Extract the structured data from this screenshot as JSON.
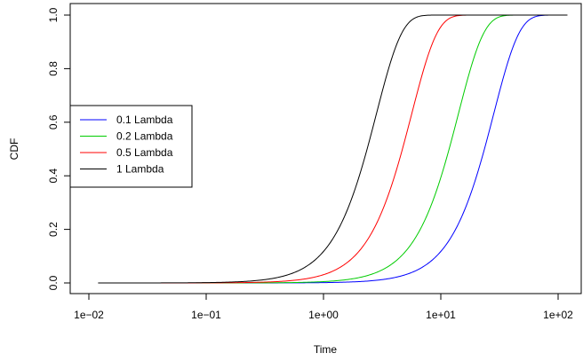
{
  "chart_data": {
    "type": "line",
    "xlabel": "Time",
    "ylabel": "CDF",
    "xscale": "log",
    "xlim": [
      0.01,
      100
    ],
    "ylim": [
      0,
      1
    ],
    "x_ticks": [
      0.01,
      0.1,
      1,
      10,
      100
    ],
    "x_tick_labels": [
      "1e−02",
      "1e−01",
      "1e+00",
      "1e+01",
      "1e+02"
    ],
    "y_ticks": [
      0,
      0.2,
      0.4,
      0.6,
      0.8,
      1
    ],
    "y_tick_labels": [
      "0.0",
      "0.2",
      "0.4",
      "0.6",
      "0.8",
      "1.0"
    ],
    "x_range": [
      0.012,
      120
    ],
    "grid": false,
    "legend_position": "left-middle",
    "series": [
      {
        "name": "0.1 Lambda",
        "color": "#0000ff",
        "rate": 0.05
      },
      {
        "name": "0.2 Lambda",
        "color": "#00cc00",
        "rate": 0.1
      },
      {
        "name": "0.5 Lambda",
        "color": "#ff0000",
        "rate": 0.25
      },
      {
        "name": "1 Lambda",
        "color": "#000000",
        "rate": 0.5
      }
    ]
  }
}
